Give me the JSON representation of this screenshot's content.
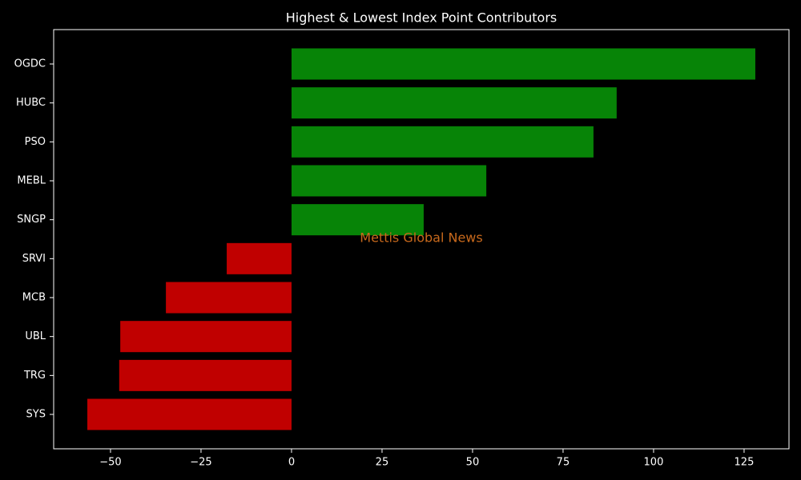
{
  "chart_data": {
    "type": "barh",
    "title": "Highest & Lowest Index Point Contributors",
    "watermark": "Mettis Global News",
    "categories": [
      "OGDC",
      "HUBC",
      "PSO",
      "MEBL",
      "SNGP",
      "SRVI",
      "MCB",
      "UBL",
      "TRG",
      "SYS"
    ],
    "values": [
      128.1,
      89.8,
      83.4,
      53.8,
      36.5,
      -17.9,
      -34.7,
      -47.3,
      -47.6,
      -56.4
    ],
    "colors": [
      "#078407",
      "#078407",
      "#078407",
      "#078407",
      "#078407",
      "#c00000",
      "#c00000",
      "#c00000",
      "#c00000",
      "#c00000"
    ],
    "xlim": [
      -65.7,
      137.4
    ],
    "xticks": [
      {
        "value": -50,
        "label": "−50"
      },
      {
        "value": -25,
        "label": "−25"
      },
      0,
      25,
      50,
      75,
      100,
      125
    ]
  }
}
